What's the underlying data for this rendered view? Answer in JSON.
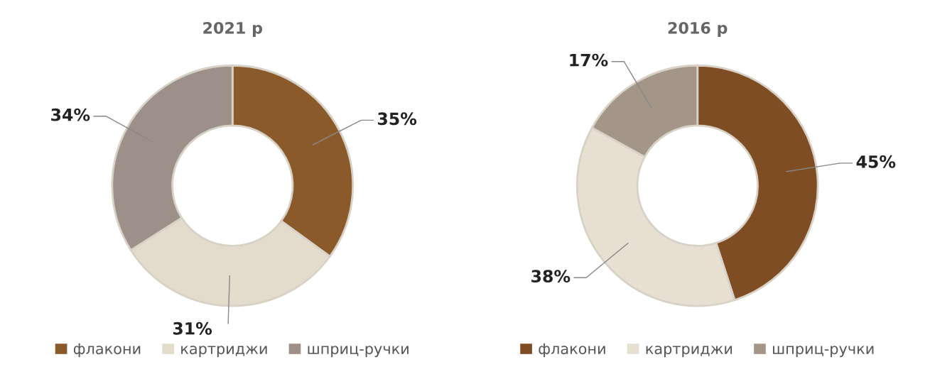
{
  "chart_data": [
    {
      "type": "donut",
      "title": "2021 р",
      "categories": [
        "флакони",
        "картриджи",
        "шприц-ручки"
      ],
      "values": [
        35,
        31,
        34
      ],
      "value_labels": [
        "35%",
        "31%",
        "34%"
      ],
      "colors": [
        "#8b5a2b",
        "#e3dccd",
        "#9c9088"
      ],
      "legend": "bottom"
    },
    {
      "type": "donut",
      "title": "2016 р",
      "categories": [
        "флакони",
        "картриджи",
        "шприц-ручки"
      ],
      "values": [
        45,
        38,
        17
      ],
      "value_labels": [
        "45%",
        "38%",
        "17%"
      ],
      "colors": [
        "#7e4d24",
        "#e6dfd2",
        "#a39689"
      ],
      "legend": "bottom"
    }
  ]
}
